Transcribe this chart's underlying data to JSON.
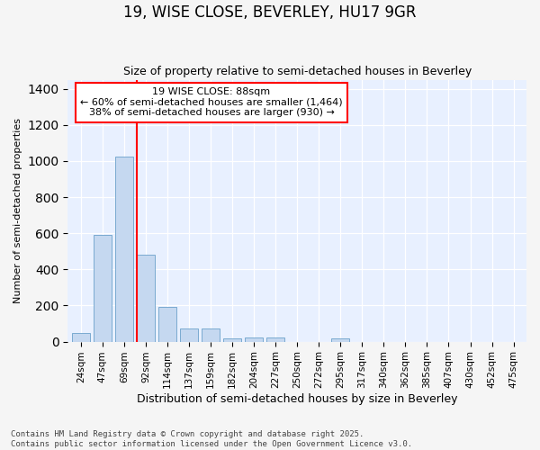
{
  "title": "19, WISE CLOSE, BEVERLEY, HU17 9GR",
  "subtitle": "Size of property relative to semi-detached houses in Beverley",
  "xlabel": "Distribution of semi-detached houses by size in Beverley",
  "ylabel": "Number of semi-detached properties",
  "categories": [
    "24sqm",
    "47sqm",
    "69sqm",
    "92sqm",
    "114sqm",
    "137sqm",
    "159sqm",
    "182sqm",
    "204sqm",
    "227sqm",
    "250sqm",
    "272sqm",
    "295sqm",
    "317sqm",
    "340sqm",
    "362sqm",
    "385sqm",
    "407sqm",
    "430sqm",
    "452sqm",
    "475sqm"
  ],
  "values": [
    47,
    590,
    1025,
    480,
    190,
    75,
    75,
    18,
    22,
    22,
    0,
    0,
    20,
    0,
    0,
    0,
    0,
    0,
    0,
    0,
    0
  ],
  "bar_color": "#c5d8f0",
  "bar_edge_color": "#7aaad0",
  "vline_x_index": 3,
  "vline_color": "red",
  "annotation_text": "19 WISE CLOSE: 88sqm\n← 60% of semi-detached houses are smaller (1,464)\n38% of semi-detached houses are larger (930) →",
  "annotation_box_color": "white",
  "annotation_box_edge_color": "red",
  "ylim": [
    0,
    1450
  ],
  "footnote": "Contains HM Land Registry data © Crown copyright and database right 2025.\nContains public sector information licensed under the Open Government Licence v3.0.",
  "bg_color": "#f5f5f5",
  "plot_bg_color": "#e8f0ff",
  "title_fontsize": 12,
  "subtitle_fontsize": 9,
  "annotation_fontsize": 8,
  "ylabel_fontsize": 8,
  "xlabel_fontsize": 9
}
